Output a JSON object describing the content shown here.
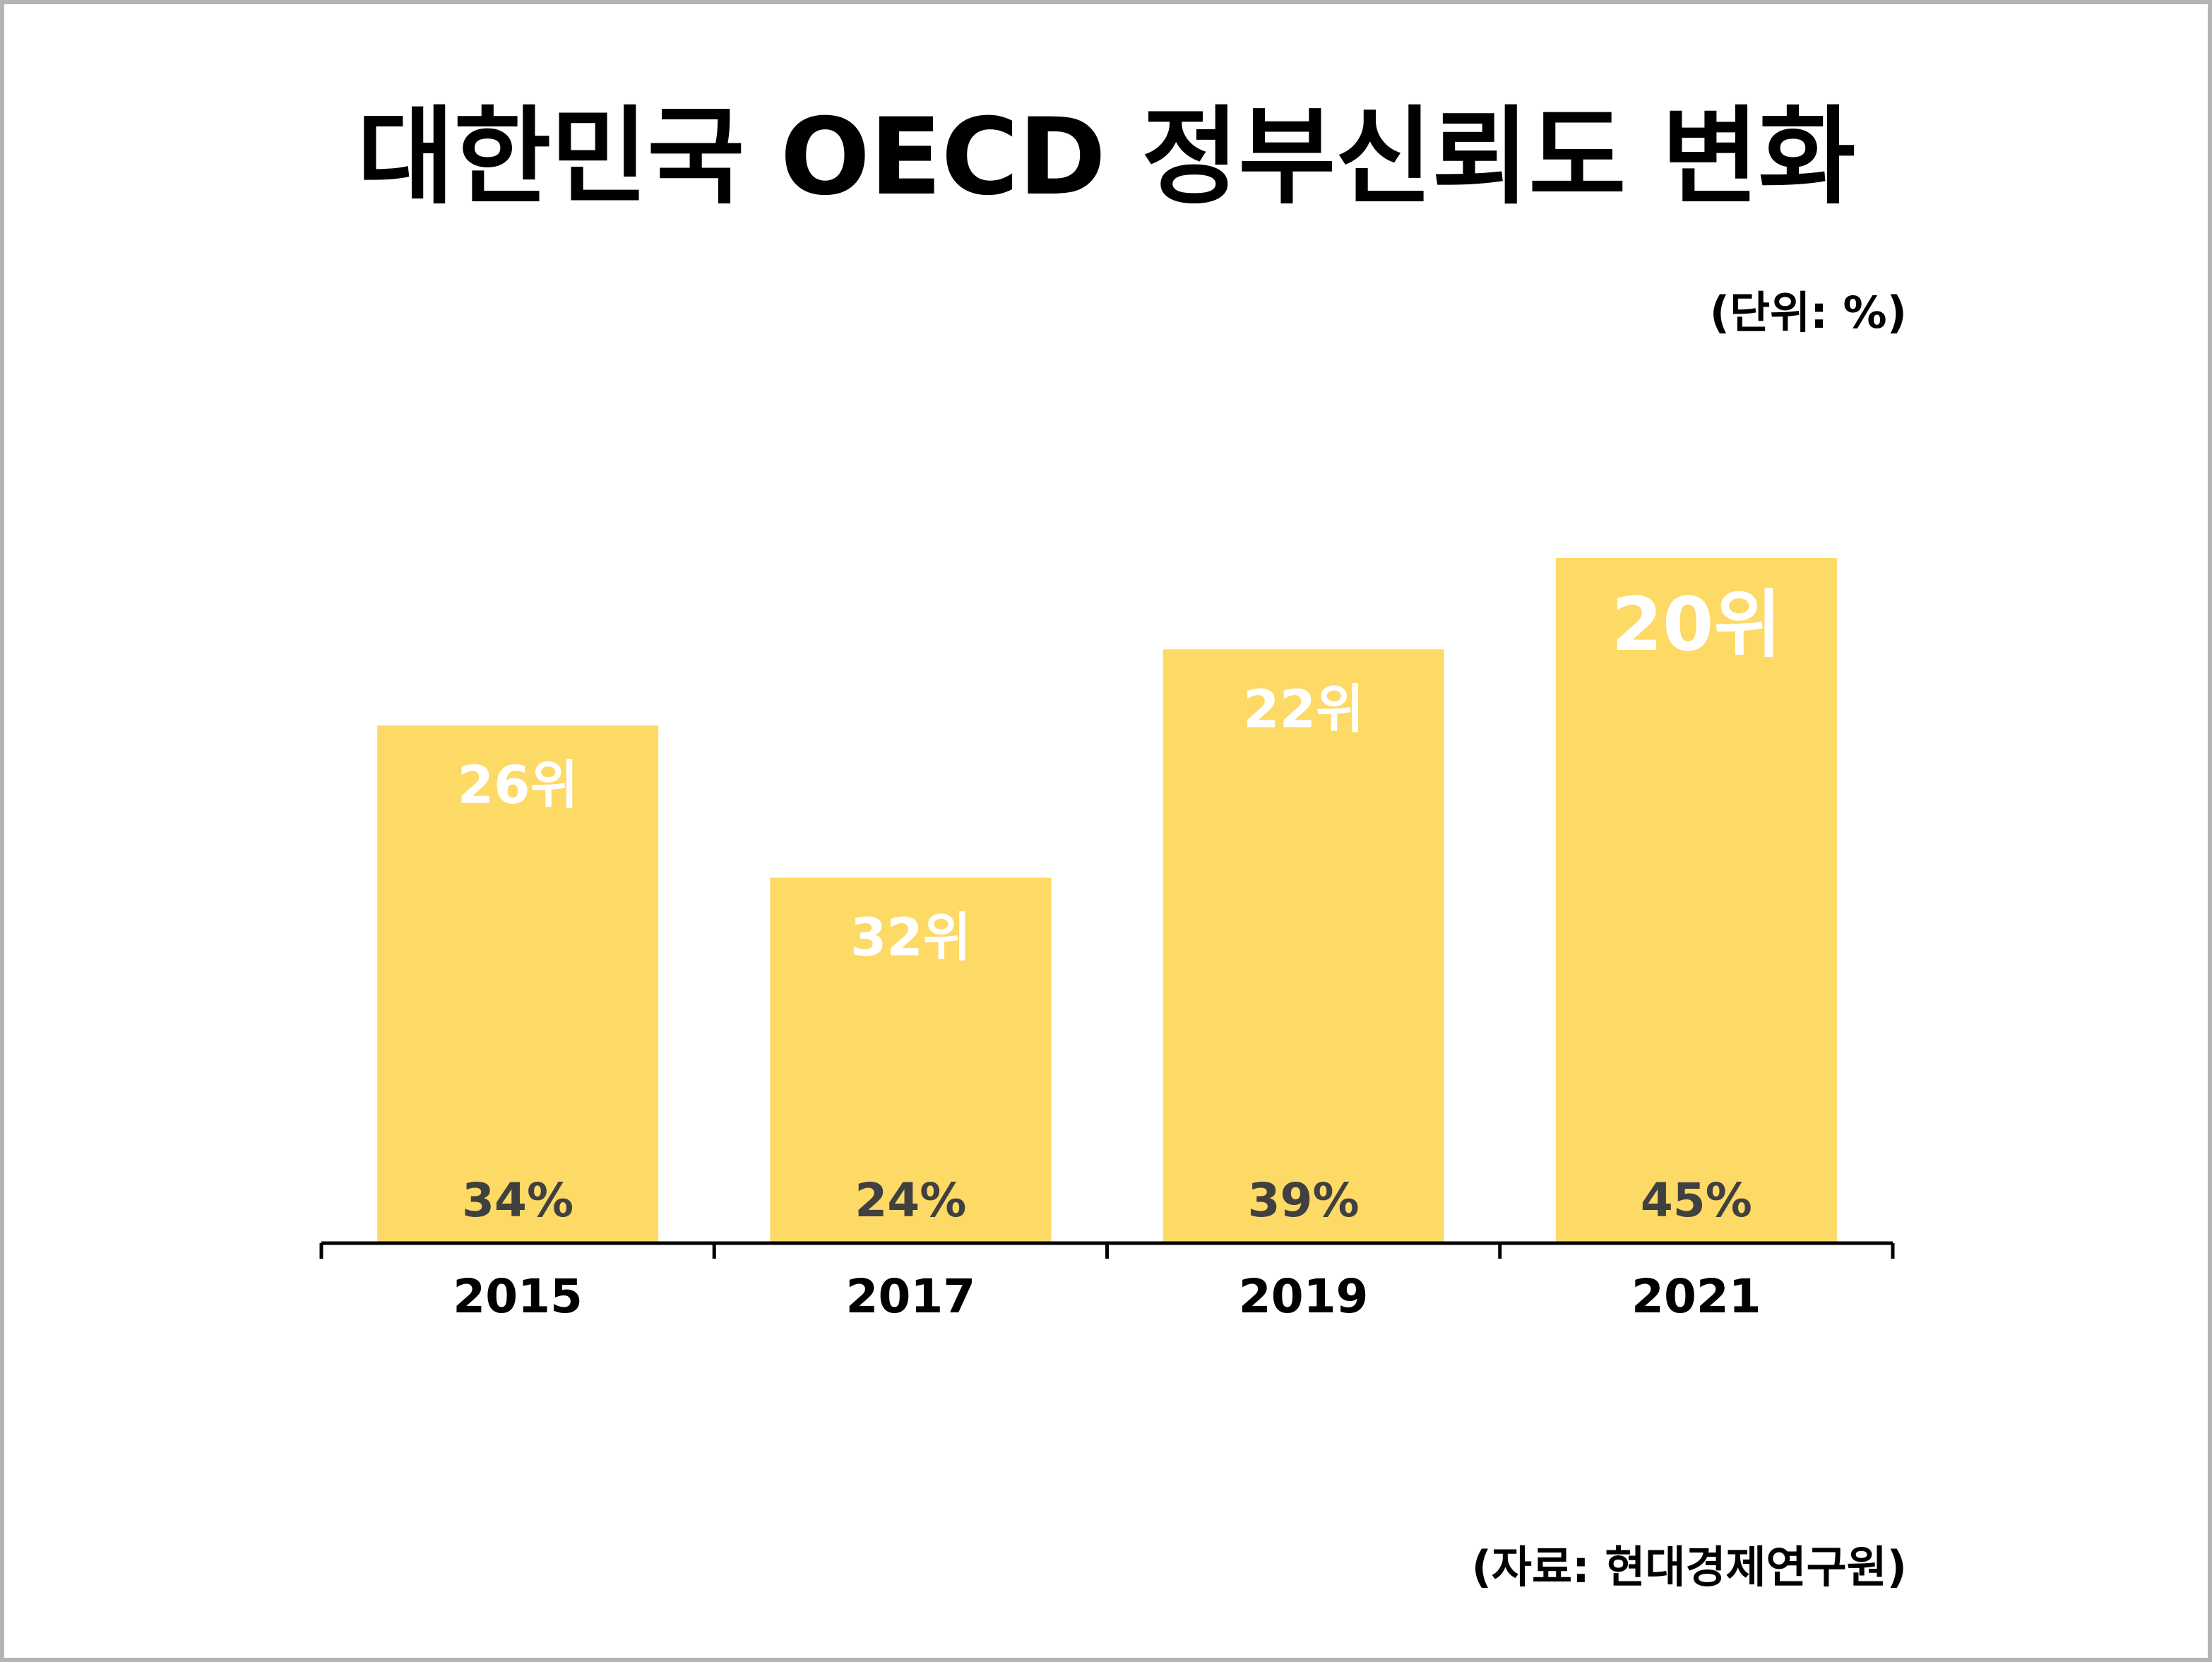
{
  "colors": {
    "bar": "#fdd966",
    "axis": "#000000",
    "rank_label": "#ffffff",
    "value_label": "#404040",
    "tick_label": "#000000",
    "border": "#b4b4b4"
  },
  "chart_data": {
    "type": "bar",
    "title": "대한민국 OECD 정부신뢰도 변화",
    "unit_note": "(단위: %)",
    "source_note": "(자료: 현대경제연구원)",
    "categories": [
      "2015",
      "2017",
      "2019",
      "2021"
    ],
    "series": [
      {
        "values": [
          34,
          24,
          39,
          45
        ],
        "value_labels": [
          "34%",
          "24%",
          "39%",
          "45%"
        ],
        "rank_labels": [
          "26위",
          "32위",
          "22위",
          "20위"
        ]
      }
    ],
    "ylim": [
      0,
      45
    ],
    "grid": false,
    "legend": "none"
  }
}
